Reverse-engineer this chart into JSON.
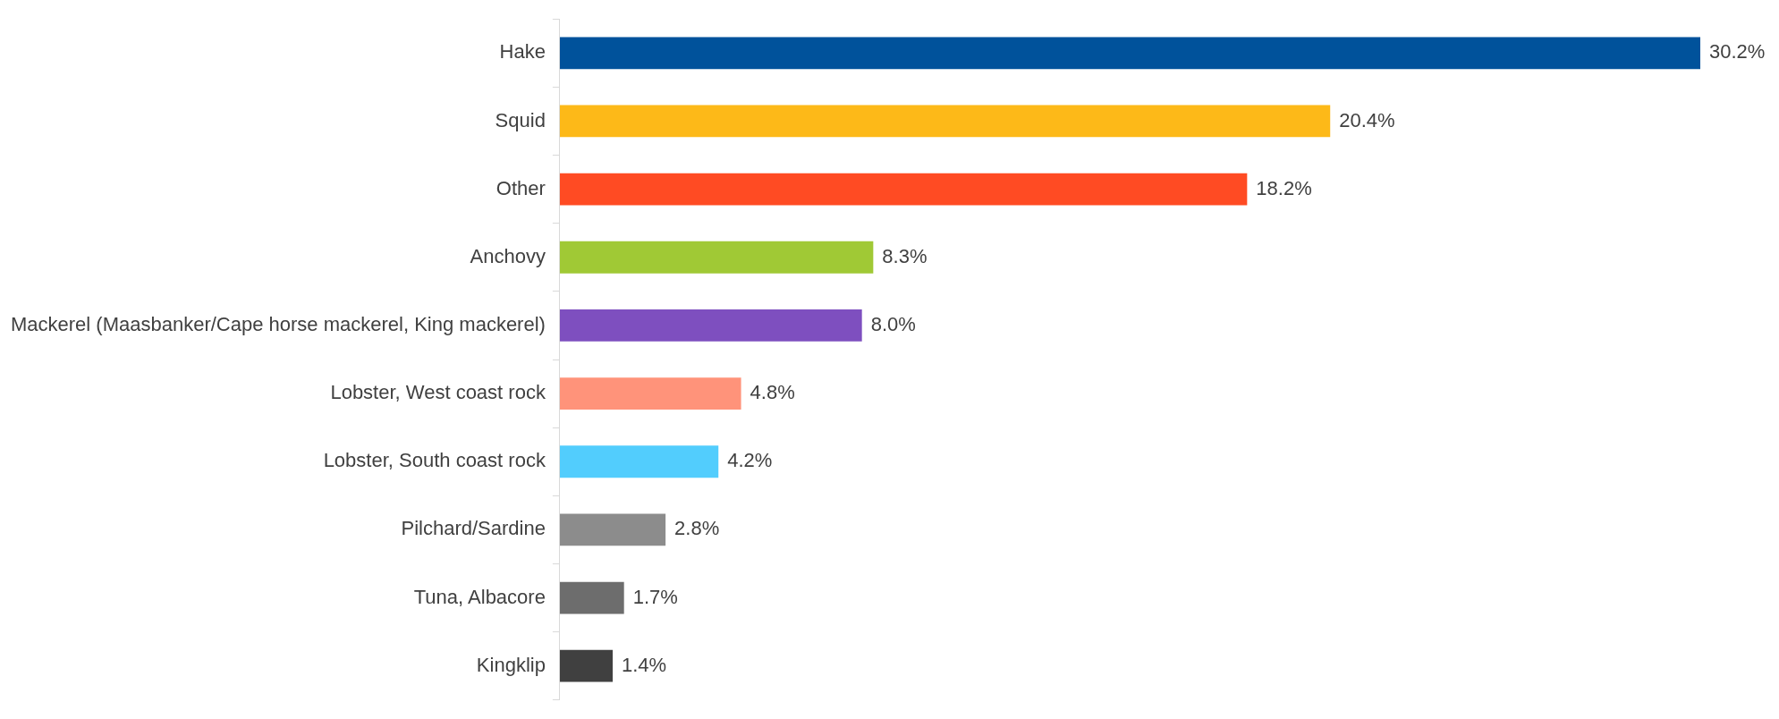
{
  "chart_data": {
    "type": "bar",
    "orientation": "horizontal",
    "categories": [
      "Hake",
      "Squid",
      "Other",
      "Anchovy",
      "Mackerel (Maasbanker/Cape horse mackerel, King mackerel)",
      "Lobster, West coast rock",
      "Lobster, South coast rock",
      "Pilchard/Sardine",
      "Tuna, Albacore",
      "Kingklip"
    ],
    "values": [
      30.2,
      20.4,
      18.2,
      8.3,
      8.0,
      4.8,
      4.2,
      2.8,
      1.7,
      1.4
    ],
    "value_labels": [
      "30.2%",
      "20.4%",
      "18.2%",
      "8.3%",
      "8.0%",
      "4.8%",
      "4.2%",
      "2.8%",
      "1.7%",
      "1.4%"
    ],
    "colors": [
      "#00529b",
      "#fdb918",
      "#ff4b23",
      "#a0c935",
      "#7e4fbf",
      "#ff937a",
      "#52cdfd",
      "#8c8c8c",
      "#6d6d6d",
      "#404040"
    ],
    "grid": false,
    "legend": false
  }
}
